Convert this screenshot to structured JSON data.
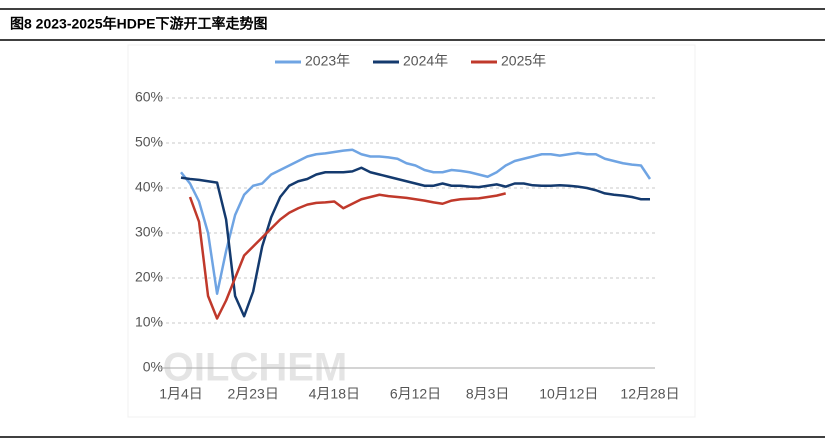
{
  "chart_data": {
    "type": "line",
    "title": "图8 2023-2025年HDPE下游开工率走势图",
    "watermark": "OILCHEM",
    "categories": [
      "1月4日",
      null,
      null,
      null,
      null,
      null,
      null,
      null,
      "2月23日",
      null,
      null,
      null,
      null,
      null,
      null,
      null,
      null,
      "4月18日",
      null,
      null,
      null,
      null,
      null,
      null,
      null,
      null,
      "6月12日",
      null,
      null,
      null,
      null,
      null,
      null,
      null,
      "8月3日",
      null,
      null,
      null,
      null,
      null,
      null,
      null,
      null,
      "10月12日",
      null,
      null,
      null,
      null,
      null,
      null,
      null,
      null,
      "12月28日"
    ],
    "series": [
      {
        "name": "2023年",
        "color": "#6fa4e3",
        "values": [
          43.5,
          41,
          37,
          30,
          16.5,
          26,
          34,
          38.5,
          40.5,
          41,
          43,
          44,
          45,
          46,
          47,
          47.5,
          47.7,
          48,
          48.3,
          48.5,
          47.5,
          47,
          47,
          46.8,
          46.5,
          45.5,
          45,
          44,
          43.5,
          43.5,
          44,
          43.8,
          43.5,
          43,
          42.5,
          43.5,
          45,
          46,
          46.5,
          47,
          47.5,
          47.5,
          47.2,
          47.5,
          47.8,
          47.5,
          47.5,
          46.5,
          46,
          45.5,
          45.2,
          45,
          42
        ]
      },
      {
        "name": "2024年",
        "color": "#143a6e",
        "values": [
          42.3,
          42,
          41.8,
          41.5,
          41.2,
          33,
          16,
          11.5,
          17,
          27,
          33.5,
          38,
          40.5,
          41.5,
          42,
          43,
          43.5,
          43.5,
          43.5,
          43.7,
          44.5,
          43.5,
          43,
          42.5,
          42,
          41.5,
          41,
          40.5,
          40.5,
          41,
          40.5,
          40.5,
          40.3,
          40.2,
          40.5,
          40.8,
          40.3,
          41,
          41,
          40.6,
          40.5,
          40.5,
          40.6,
          40.5,
          40.3,
          40,
          39.5,
          38.8,
          38.5,
          38.3,
          38,
          37.5,
          37.5
        ]
      },
      {
        "name": "2025年",
        "color": "#c0392b",
        "values": [
          null,
          38,
          32.5,
          16,
          11,
          15,
          20,
          25,
          27,
          29,
          31,
          33,
          34.5,
          35.5,
          36.3,
          36.7,
          36.8,
          37,
          35.5,
          36.5,
          37.5,
          38,
          38.5,
          38.2,
          38,
          37.8,
          37.5,
          37.2,
          36.8,
          36.5,
          37.2,
          37.5,
          37.6,
          37.7,
          38,
          38.3,
          38.8,
          null,
          null,
          null,
          null,
          null,
          null,
          null,
          null,
          null,
          null,
          null,
          null,
          null,
          null,
          null,
          null
        ]
      }
    ],
    "ylim": [
      0,
      60
    ],
    "yticks": [
      {
        "value": 0,
        "label": "0%"
      },
      {
        "value": 10,
        "label": "10%"
      },
      {
        "value": 20,
        "label": "20%"
      },
      {
        "value": 30,
        "label": "30%"
      },
      {
        "value": 40,
        "label": "40%"
      },
      {
        "value": 50,
        "label": "50%"
      },
      {
        "value": 60,
        "label": "60%"
      }
    ],
    "grid": true,
    "legend": "top"
  }
}
